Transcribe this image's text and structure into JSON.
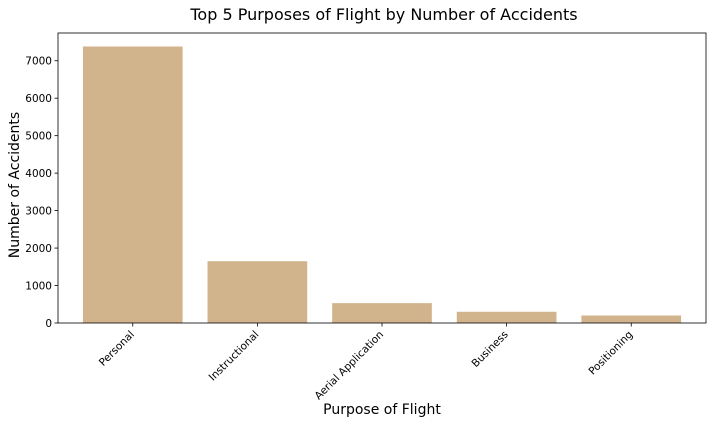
{
  "chart_data": {
    "type": "bar",
    "title": "Top 5 Purposes of Flight by Number of Accidents",
    "xlabel": "Purpose of Flight",
    "ylabel": "Number of Accidents",
    "categories": [
      "Personal",
      "Instructional",
      "Aerial Application",
      "Business",
      "Positioning"
    ],
    "values": [
      7380,
      1650,
      530,
      300,
      200
    ],
    "yticks": [
      0,
      1000,
      2000,
      3000,
      4000,
      5000,
      6000,
      7000
    ],
    "ylim": [
      0,
      7740
    ],
    "grid": false,
    "bar_color": "#d2b48c"
  }
}
